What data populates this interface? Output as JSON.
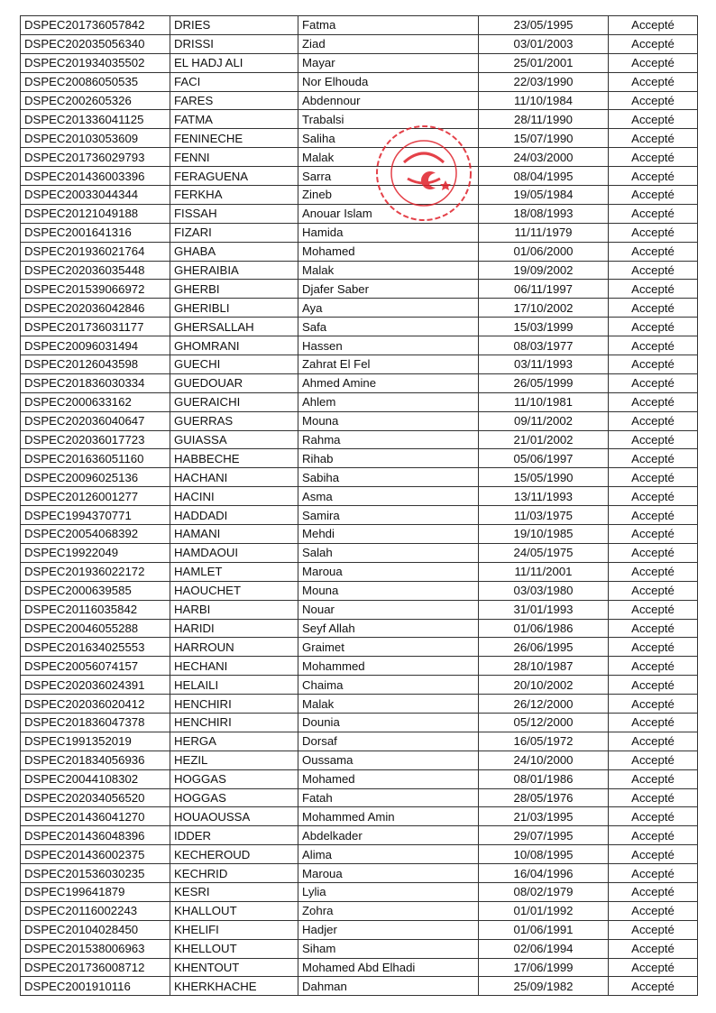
{
  "status_color": "#111111",
  "stamp_color": "#e0202a",
  "rows": [
    [
      "DSPEC201736057842",
      "DRIES",
      "Fatma",
      "23/05/1995",
      "Accepté"
    ],
    [
      "DSPEC202035056340",
      "DRISSI",
      "Ziad",
      "03/01/2003",
      "Accepté"
    ],
    [
      "DSPEC201934035502",
      "EL HADJ ALI",
      "Mayar",
      "25/01/2001",
      "Accepté"
    ],
    [
      "DSPEC20086050535",
      "FACI",
      "Nor Elhouda",
      "22/03/1990",
      "Accepté"
    ],
    [
      "DSPEC2002605326",
      "FARES",
      "Abdennour",
      "11/10/1984",
      "Accepté"
    ],
    [
      "DSPEC201336041125",
      "FATMA",
      "Trabalsi",
      "28/11/1990",
      "Accepté"
    ],
    [
      "DSPEC20103053609",
      "FENINECHE",
      "Saliha",
      "15/07/1990",
      "Accepté"
    ],
    [
      "DSPEC201736029793",
      "FENNI",
      "Malak",
      "24/03/2000",
      "Accepté"
    ],
    [
      "DSPEC201436003396",
      "FERAGUENA",
      "Sarra",
      "08/04/1995",
      "Accepté"
    ],
    [
      "DSPEC20033044344",
      "FERKHA",
      "Zineb",
      "19/05/1984",
      "Accepté"
    ],
    [
      "DSPEC20121049188",
      "FISSAH",
      "Anouar Islam",
      "18/08/1993",
      "Accepté"
    ],
    [
      "DSPEC2001641316",
      "FIZARI",
      "Hamida",
      "11/11/1979",
      "Accepté"
    ],
    [
      "DSPEC201936021764",
      "GHABA",
      "Mohamed",
      "01/06/2000",
      "Accepté"
    ],
    [
      "DSPEC202036035448",
      "GHERAIBIA",
      "Malak",
      "19/09/2002",
      "Accepté"
    ],
    [
      "DSPEC201539066972",
      "GHERBI",
      "Djafer Saber",
      "06/11/1997",
      "Accepté"
    ],
    [
      "DSPEC202036042846",
      "GHERIBLI",
      "Aya",
      "17/10/2002",
      "Accepté"
    ],
    [
      "DSPEC201736031177",
      "GHERSALLAH",
      "Safa",
      "15/03/1999",
      "Accepté"
    ],
    [
      "DSPEC20096031494",
      "GHOMRANI",
      "Hassen",
      "08/03/1977",
      "Accepté"
    ],
    [
      "DSPEC20126043598",
      "GUECHI",
      "Zahrat El Fel",
      "03/11/1993",
      "Accepté"
    ],
    [
      "DSPEC201836030334",
      "GUEDOUAR",
      "Ahmed Amine",
      "26/05/1999",
      "Accepté"
    ],
    [
      "DSPEC2000633162",
      "GUERAICHI",
      "Ahlem",
      "11/10/1981",
      "Accepté"
    ],
    [
      "DSPEC202036040647",
      "GUERRAS",
      "Mouna",
      "09/11/2002",
      "Accepté"
    ],
    [
      "DSPEC202036017723",
      "GUIASSA",
      "Rahma",
      "21/01/2002",
      "Accepté"
    ],
    [
      "DSPEC201636051160",
      "HABBECHE",
      "Rihab",
      "05/06/1997",
      "Accepté"
    ],
    [
      "DSPEC20096025136",
      "HACHANI",
      "Sabiha",
      "15/05/1990",
      "Accepté"
    ],
    [
      "DSPEC20126001277",
      "HACINI",
      "Asma",
      "13/11/1993",
      "Accepté"
    ],
    [
      "DSPEC1994370771",
      "HADDADI",
      "Samira",
      "11/03/1975",
      "Accepté"
    ],
    [
      "DSPEC20054068392",
      "HAMANI",
      "Mehdi",
      "19/10/1985",
      "Accepté"
    ],
    [
      "DSPEC19922049",
      "HAMDAOUI",
      "Salah",
      "24/05/1975",
      "Accepté"
    ],
    [
      "DSPEC201936022172",
      "HAMLET",
      "Maroua",
      "11/11/2001",
      "Accepté"
    ],
    [
      "DSPEC2000639585",
      "HAOUCHET",
      "Mouna",
      "03/03/1980",
      "Accepté"
    ],
    [
      "DSPEC20116035842",
      "HARBI",
      "Nouar",
      "31/01/1993",
      "Accepté"
    ],
    [
      "DSPEC20046055288",
      "HARIDI",
      "Seyf Allah",
      "01/06/1986",
      "Accepté"
    ],
    [
      "DSPEC201634025553",
      "HARROUN",
      "Graimet",
      "26/06/1995",
      "Accepté"
    ],
    [
      "DSPEC20056074157",
      "HECHANI",
      "Mohammed",
      "28/10/1987",
      "Accepté"
    ],
    [
      "DSPEC202036024391",
      "HELAILI",
      "Chaima",
      "20/10/2002",
      "Accepté"
    ],
    [
      "DSPEC202036020412",
      "HENCHIRI",
      "Malak",
      "26/12/2000",
      "Accepté"
    ],
    [
      "DSPEC201836047378",
      "HENCHIRI",
      "Dounia",
      "05/12/2000",
      "Accepté"
    ],
    [
      "DSPEC1991352019",
      "HERGA",
      "Dorsaf",
      "16/05/1972",
      "Accepté"
    ],
    [
      "DSPEC201834056936",
      "HEZIL",
      "Oussama",
      "24/10/2000",
      "Accepté"
    ],
    [
      "DSPEC20044108302",
      "HOGGAS",
      "Mohamed",
      "08/01/1986",
      "Accepté"
    ],
    [
      "DSPEC202034056520",
      "HOGGAS",
      "Fatah",
      "28/05/1976",
      "Accepté"
    ],
    [
      "DSPEC201436041270",
      "HOUAOUSSA",
      "Mohammed Amin",
      "21/03/1995",
      "Accepté"
    ],
    [
      "DSPEC201436048396",
      "IDDER",
      "Abdelkader",
      "29/07/1995",
      "Accepté"
    ],
    [
      "DSPEC201436002375",
      "KECHEROUD",
      "Alima",
      "10/08/1995",
      "Accepté"
    ],
    [
      "DSPEC201536030235",
      "KECHRID",
      "Maroua",
      "16/04/1996",
      "Accepté"
    ],
    [
      "DSPEC199641879",
      "KESRI",
      "Lylia",
      "08/02/1979",
      "Accepté"
    ],
    [
      "DSPEC20116002243",
      "KHALLOUT",
      "Zohra",
      "01/01/1992",
      "Accepté"
    ],
    [
      "DSPEC20104028450",
      "KHELIFI",
      "Hadjer",
      "01/06/1991",
      "Accepté"
    ],
    [
      "DSPEC201538006963",
      "KHELLOUT",
      "Siham",
      "02/06/1994",
      "Accepté"
    ],
    [
      "DSPEC201736008712",
      "KHENTOUT",
      "Mohamed Abd Elhadi",
      "17/06/1999",
      "Accepté"
    ],
    [
      "DSPEC2001910116",
      "KHERKHACHE",
      "Dahman",
      "25/09/1982",
      "Accepté"
    ]
  ]
}
